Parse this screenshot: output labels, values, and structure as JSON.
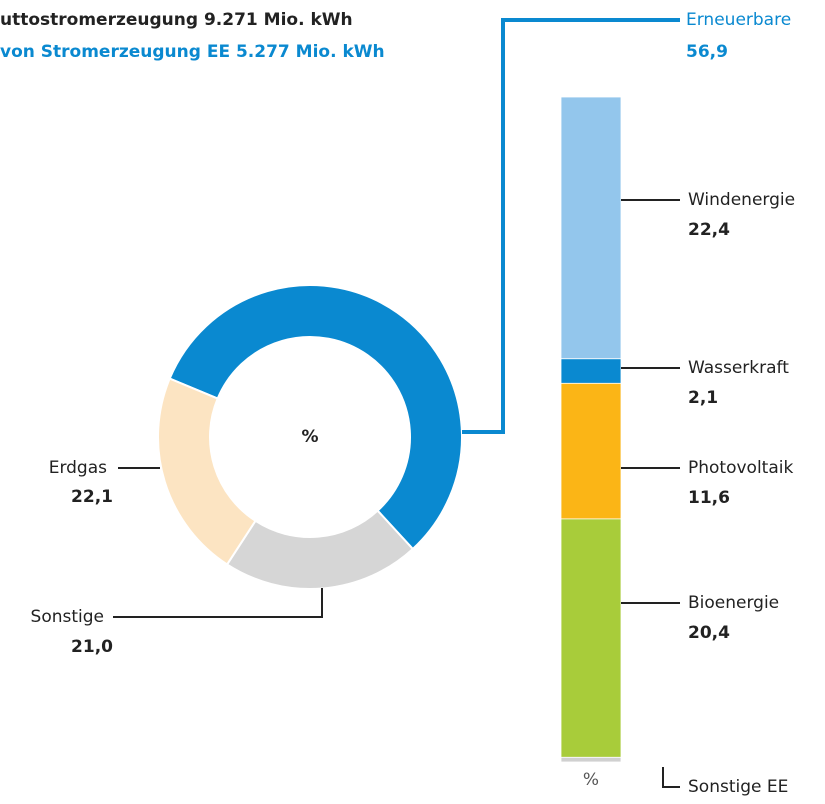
{
  "chart_data": [
    {
      "type": "donut",
      "title": "uttostromerzeugung 9.271 Mio. kWh",
      "subtitle": "von Stromerzeugung EE 5.277 Mio. kWh",
      "center_label": "%",
      "categories": [
        "Erneuerbare",
        "Sonstige",
        "Erdgas"
      ],
      "values": [
        56.9,
        21.0,
        22.1
      ],
      "value_labels": [
        "56,9",
        "21,0",
        "22,1"
      ],
      "colors": [
        "#0a89d0",
        "#d6d6d6",
        "#fce4c2"
      ]
    },
    {
      "type": "stacked-bar",
      "unit_label": "%",
      "categories": [
        "Windenergie",
        "Wasserkraft",
        "Photovoltaik",
        "Bioenergie",
        "Sonstige EE"
      ],
      "values": [
        22.4,
        2.1,
        11.6,
        20.4,
        0.4
      ],
      "value_labels": [
        "22,4",
        "2,1",
        "11,6",
        "20,4",
        null
      ],
      "colors": [
        "#93c6ec",
        "#0a89d0",
        "#fbb516",
        "#a8cc3a",
        "#d0d0d0"
      ]
    }
  ]
}
